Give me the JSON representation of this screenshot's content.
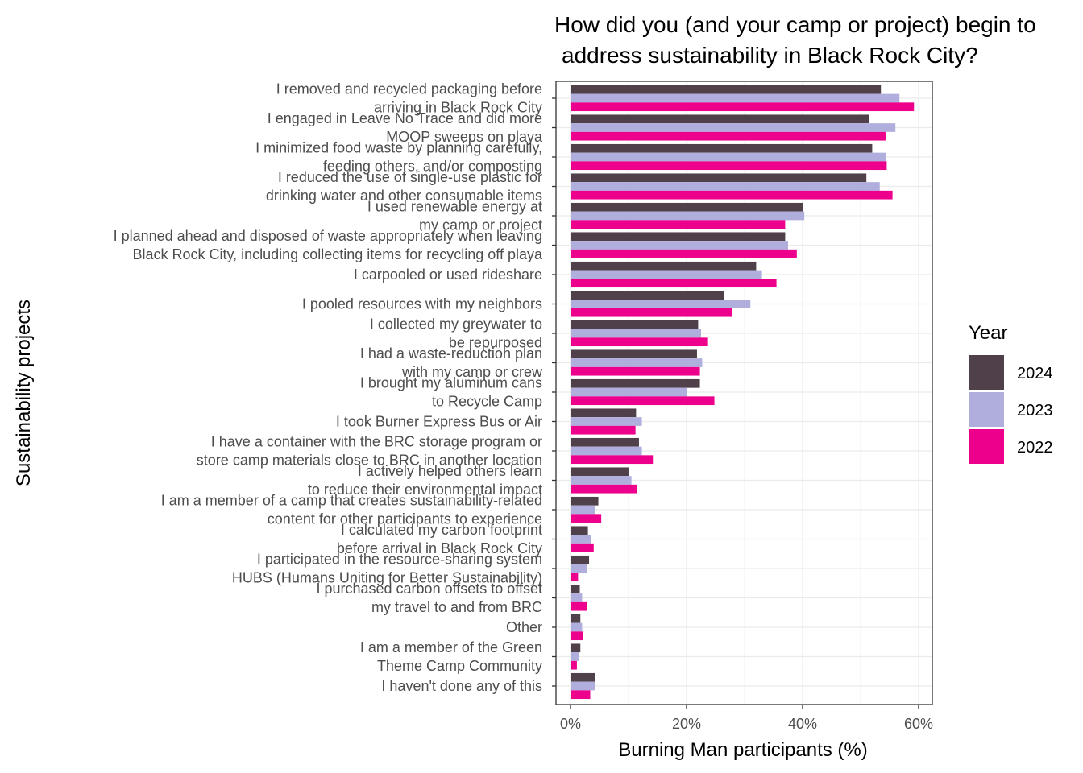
{
  "chart_data": {
    "type": "bar",
    "orientation": "horizontal",
    "title_lines": [
      "How did you (and your camp or project) begin to",
      "address sustainability in Black Rock City?"
    ],
    "xlabel": "Burning Man participants (%)",
    "ylabel": "Sustainability projects",
    "xlim": [
      0,
      62
    ],
    "x_ticks": [
      0,
      20,
      40,
      60
    ],
    "x_tick_labels": [
      "0%",
      "20%",
      "40%",
      "60%"
    ],
    "grid": true,
    "legend": {
      "title": "Year",
      "position": "right"
    },
    "categories": [
      [
        "I removed and recycled packaging before ",
        "arriving in Black Rock City"
      ],
      [
        "I engaged in Leave No Trace and did more ",
        "MOOP sweeps on playa"
      ],
      [
        "I minimized food waste by planning carefully, ",
        "feeding others, and/or composting"
      ],
      [
        "I reduced the use of single-use plastic for ",
        "drinking water and other consumable items"
      ],
      [
        "I used renewable energy at ",
        "my camp or project"
      ],
      [
        "I planned ahead and disposed of waste appropriately when leaving ",
        "Black Rock City, including collecting items for recycling off playa"
      ],
      [
        "I carpooled or used rideshare"
      ],
      [
        "I pooled resources with my neighbors"
      ],
      [
        "I collected my greywater to ",
        "be repurposed"
      ],
      [
        "I had a waste-reduction plan ",
        "with my camp or crew"
      ],
      [
        "I brought my aluminum cans ",
        "to Recycle Camp"
      ],
      [
        "I took Burner Express Bus or Air"
      ],
      [
        "I have a container with the BRC storage program or ",
        "store camp materials close to BRC in another location"
      ],
      [
        "I actively helped others learn ",
        "to reduce their environmental impact"
      ],
      [
        "I am a member of a camp that creates sustainability-related ",
        "content for other participants to experience"
      ],
      [
        "I calculated my carbon footprint ",
        "before arrival in Black Rock City"
      ],
      [
        "I participated in the resource-sharing system ",
        "HUBS (Humans Uniting for Better Sustainability)"
      ],
      [
        "I purchased carbon offsets to offset ",
        "my travel to and from BRC"
      ],
      [
        "Other"
      ],
      [
        "I am a member of the Green ",
        "Theme Camp Community"
      ],
      [
        "I haven't done any of this"
      ]
    ],
    "series": [
      {
        "name": "2024",
        "color": "#4f4049",
        "values": [
          53.5,
          51.5,
          52.0,
          51.0,
          40.0,
          37.0,
          32.0,
          26.5,
          22.0,
          21.8,
          22.3,
          11.3,
          11.8,
          10.0,
          4.8,
          3.0,
          3.2,
          1.6,
          1.7,
          1.7,
          4.3
        ]
      },
      {
        "name": "2023",
        "color": "#b0aedd",
        "values": [
          56.7,
          56.0,
          54.3,
          53.3,
          40.3,
          37.5,
          33.0,
          31.0,
          22.5,
          22.7,
          20.0,
          12.3,
          12.3,
          10.5,
          4.2,
          3.5,
          2.9,
          2.0,
          2.0,
          1.4,
          4.2
        ]
      },
      {
        "name": "2022",
        "color": "#ec008c",
        "values": [
          59.2,
          54.3,
          54.5,
          55.5,
          37.0,
          39.0,
          35.5,
          27.8,
          23.7,
          22.3,
          24.8,
          11.2,
          14.2,
          11.5,
          5.3,
          4.0,
          1.3,
          2.8,
          2.1,
          1.1,
          3.4
        ]
      }
    ]
  }
}
